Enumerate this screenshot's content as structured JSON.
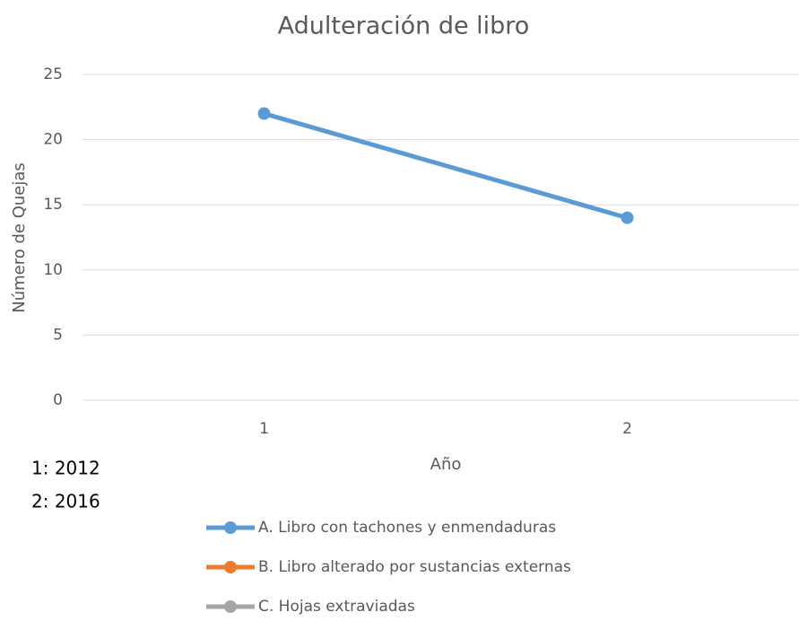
{
  "chart_data": {
    "type": "line",
    "title": "Adulteración de libro",
    "xlabel": "Año",
    "ylabel": "Número de Quejas",
    "categories": [
      "1",
      "2"
    ],
    "series": [
      {
        "name": "A. Libro con tachones y enmendaduras",
        "color": "#5b9bd5",
        "values": [
          22,
          14
        ]
      },
      {
        "name": "B. Libro alterado por sustancias externas",
        "color": "#ed7d31",
        "values": [
          null,
          null
        ]
      },
      {
        "name": "C. Hojas extraviadas",
        "color": "#a5a5a5",
        "values": [
          null,
          null
        ]
      }
    ],
    "ylim": [
      0,
      25
    ],
    "yticks": [
      0,
      5,
      10,
      15,
      20,
      25
    ],
    "grid": true,
    "legend": "bottom",
    "annotations": [
      "1: 2012",
      "2: 2016"
    ]
  }
}
